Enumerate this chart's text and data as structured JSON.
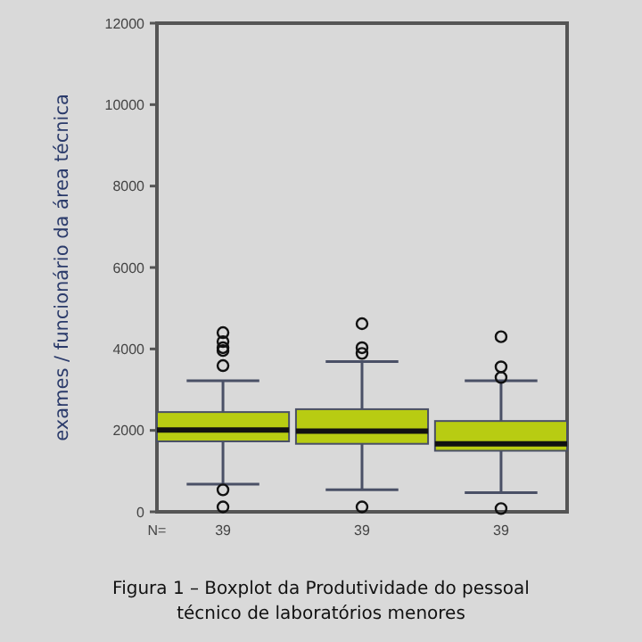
{
  "chart_data": {
    "type": "box",
    "title": "Figura 1 – Boxplot da Produtividade do pessoal técnico de laboratórios menores",
    "ylabel": "exames / funcionário da área técnica",
    "categories": [
      "39",
      "39",
      "39"
    ],
    "annotations": [
      "N="
    ],
    "color": "#b8cc12",
    "boxes": [
      {
        "low": 680,
        "q1": 1730,
        "median": 2010,
        "q3": 2450,
        "high": 3220,
        "outliers": [
          4400,
          4180,
          4030,
          3960,
          3590,
          540,
          120
        ]
      },
      {
        "low": 540,
        "q1": 1670,
        "median": 1980,
        "q3": 2520,
        "high": 3690,
        "outliers": [
          4620,
          4030,
          3890,
          120
        ]
      },
      {
        "low": 470,
        "q1": 1500,
        "median": 1670,
        "q3": 2230,
        "high": 3220,
        "outliers": [
          4300,
          3560,
          3300,
          80
        ]
      }
    ],
    "ylim": [
      0,
      12000
    ],
    "yticks": [
      0,
      2000,
      4000,
      6000,
      8000,
      10000,
      12000
    ],
    "grid": false
  }
}
